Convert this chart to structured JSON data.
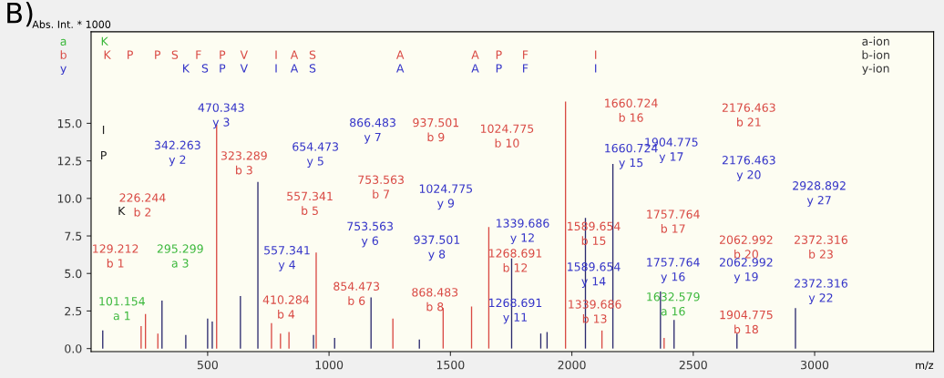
{
  "chart_data": {
    "type": "bar",
    "ylabel": "Abs. Int. * 1000",
    "xlabel": "m/z",
    "xlim": [
      20,
      3490
    ],
    "ylim": [
      -0.2,
      21.1
    ],
    "xticks": [
      500,
      1000,
      1500,
      2000,
      2500,
      3000
    ],
    "yticks": [
      {
        "value": 0,
        "label": "0.0"
      },
      {
        "value": 2.5,
        "label": "2.5"
      },
      {
        "value": 5,
        "label": "5.0"
      },
      {
        "value": 7.5,
        "label": "7.5"
      },
      {
        "value": 10,
        "label": "10.0"
      },
      {
        "value": 12.5,
        "label": "12.5"
      },
      {
        "value": 15,
        "label": "15.0"
      }
    ],
    "grid": false,
    "series": [
      {
        "color": "#d94a44",
        "x": [
          226,
          244,
          295,
          537,
          763,
          800,
          835,
          947,
          1263,
          1470,
          1587,
          1658,
          1974,
          2124,
          2380
        ],
        "values": [
          1.5,
          2.3,
          1.0,
          14.9,
          1.7,
          1.0,
          1.1,
          6.4,
          2.0,
          2.7,
          2.8,
          8.1,
          16.45,
          1.2,
          0.7
        ]
      },
      {
        "color": "#2b2a6e",
        "x": [
          68,
          312,
          410,
          500,
          519,
          635,
          707,
          936,
          1023,
          1173,
          1372,
          1752,
          1872,
          1898,
          2056,
          2169,
          2365,
          2421,
          2680,
          2921
        ],
        "values": [
          1.2,
          3.2,
          0.9,
          2.0,
          1.8,
          3.5,
          11.1,
          0.9,
          0.7,
          3.4,
          0.6,
          6.0,
          1.0,
          1.1,
          8.7,
          12.3,
          3.8,
          1.9,
          1.0,
          2.7
        ]
      }
    ],
    "annotations": [
      "B)",
      "a",
      "b",
      "y",
      "a-ion",
      "b-ion",
      "y-ion",
      "K",
      "K",
      "P",
      "P",
      "S",
      "F",
      "P",
      "V",
      "I",
      "A",
      "S",
      "A",
      "A",
      "P",
      "F",
      "I",
      "K",
      "S",
      "P",
      "V",
      "I",
      "A",
      "S",
      "A",
      "A",
      "P",
      "F",
      "I",
      "470.343\ny 3",
      "342.263\ny 2",
      "323.289\nb 3",
      "654.473\ny 5",
      "866.483\ny 7",
      "937.501\nb 9",
      "1024.775\nb 10",
      "1660.724\nb 16",
      "2176.463\nb 21",
      "1660.724\ny 15",
      "1904.775\ny 17",
      "2176.463\ny 20",
      "753.563\nb 7",
      "557.341\nb 5",
      "1024.775\ny 9",
      "226.244\nb 2",
      "1339.686\ny 12",
      "1589.654\nb 15",
      "1757.764\nb 17",
      "2062.992\nb 20",
      "2928.892\ny 27",
      "753.563\ny 6",
      "937.501\ny 8",
      "129.212\nb 1",
      "295.299\na 3",
      "557.341\ny 4",
      "1268.691\nb 12",
      "1589.654\ny 14",
      "1757.764\ny 16",
      "2062.992\ny 19",
      "2372.316\nb 23",
      "854.473\nb 6",
      "868.483\nb 8",
      "410.284\nb 4",
      "101.154\na 1",
      "1268.691\ny 11",
      "1339.686\nb 13",
      "1632.579\na 16",
      "1904.775\nb 18",
      "2372.316\ny 22",
      "K",
      "P",
      "I"
    ]
  }
}
